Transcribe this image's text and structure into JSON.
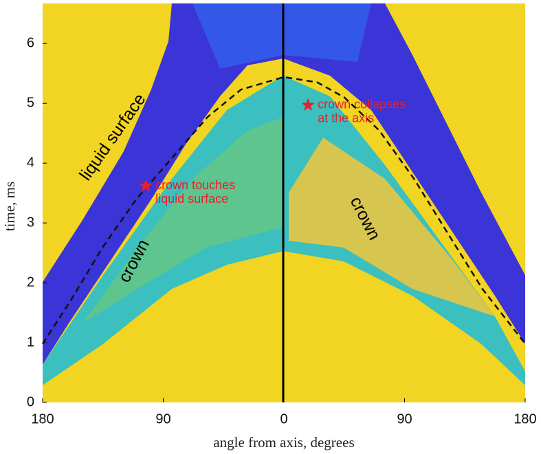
{
  "chart_data": {
    "type": "line",
    "xlabel": "angle from axis, degrees",
    "ylabel": "time, ms",
    "xlim": [
      -180,
      180
    ],
    "ylim": [
      0,
      6.67
    ],
    "xticks": [
      {
        "value": -180,
        "label": "180"
      },
      {
        "value": -90,
        "label": "90"
      },
      0,
      90,
      180
    ],
    "yticks": [
      0,
      1,
      2,
      3,
      4,
      5,
      6
    ],
    "series": [
      {
        "color": "#111111",
        "dash": true,
        "x": [
          -180,
          -160,
          -135,
          -110,
          -83,
          -57,
          -32,
          0,
          25,
          45,
          71,
          97,
          123,
          148,
          180
        ],
        "values": [
          0.98,
          1.67,
          2.6,
          3.4,
          4.1,
          4.77,
          5.23,
          5.44,
          5.35,
          5.1,
          4.55,
          3.74,
          2.8,
          1.9,
          0.98
        ]
      }
    ],
    "annotations": [
      {
        "text": [
          "crown touches",
          "liquid surface"
        ],
        "x": -103,
        "y": 3.62,
        "color": "#e8202a"
      },
      {
        "text": [
          "crown collapses",
          "at the axis"
        ],
        "x": 18,
        "y": 4.97,
        "color": "#e8202a"
      }
    ],
    "labels": [
      "liquid surface",
      "crown",
      "crown"
    ]
  }
}
